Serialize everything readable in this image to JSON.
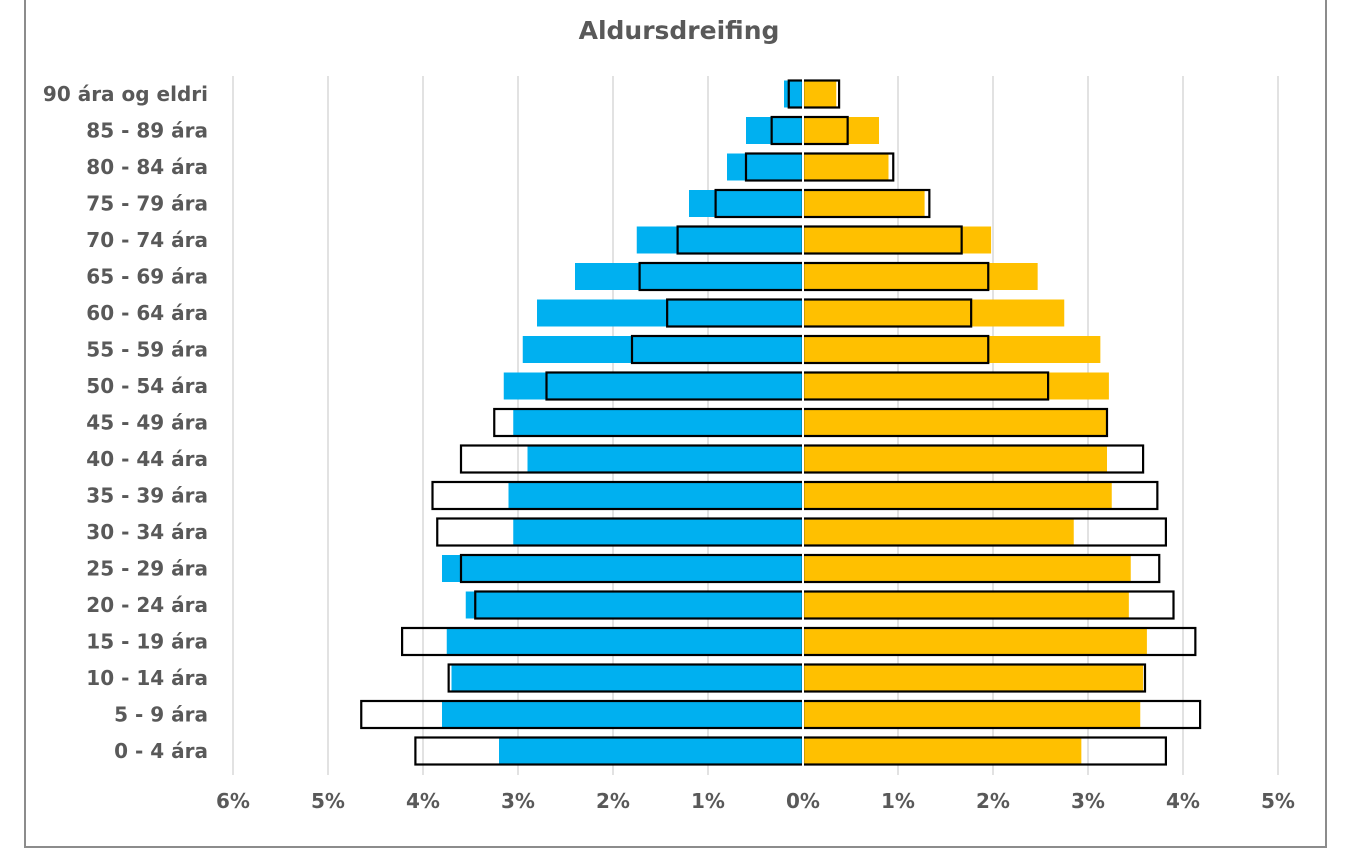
{
  "chart_data": {
    "type": "bar",
    "orientation": "horizontal",
    "layout": "population-pyramid",
    "title": "Aldursdreifing",
    "categories": [
      "90 ára og eldri",
      "85 - 89 ára",
      "80 - 84 ára",
      "75 - 79 ára",
      "70 - 74 ára",
      "65 - 69 ára",
      "60 - 64 ára",
      "55 - 59 ára",
      "50 - 54 ára",
      "45 - 49 ára",
      "40 - 44 ára",
      "35 - 39 ára",
      "30 - 34 ára",
      "25 - 29 ára",
      "20 - 24 ára",
      "15 - 19 ára",
      "10 - 14 ára",
      "5 - 9 ára",
      "0 - 4 ára"
    ],
    "series": [
      {
        "side": "left",
        "style": "filled",
        "color": "#00b0f0",
        "values": [
          0.2,
          0.6,
          0.8,
          1.2,
          1.75,
          2.4,
          2.8,
          2.95,
          3.15,
          3.05,
          2.9,
          3.1,
          3.05,
          3.8,
          3.55,
          3.75,
          3.7,
          3.8,
          3.2
        ]
      },
      {
        "side": "left",
        "style": "outline",
        "color": "#000000",
        "values": [
          0.15,
          0.33,
          0.6,
          0.92,
          1.32,
          1.72,
          1.43,
          1.8,
          2.7,
          3.25,
          3.6,
          3.9,
          3.85,
          3.6,
          3.45,
          4.22,
          3.73,
          4.65,
          4.08
        ]
      },
      {
        "side": "right",
        "style": "filled",
        "color": "#ffc000",
        "values": [
          0.35,
          0.8,
          0.9,
          1.28,
          1.98,
          2.47,
          2.75,
          3.13,
          3.22,
          3.2,
          3.2,
          3.25,
          2.85,
          3.45,
          3.43,
          3.62,
          3.58,
          3.55,
          2.93
        ]
      },
      {
        "side": "right",
        "style": "outline",
        "color": "#000000",
        "values": [
          0.38,
          0.47,
          0.95,
          1.33,
          1.67,
          1.95,
          1.77,
          1.95,
          2.58,
          3.2,
          3.58,
          3.73,
          3.82,
          3.75,
          3.9,
          4.13,
          3.6,
          4.18,
          3.82
        ]
      }
    ],
    "xlim_left": [
      0,
      6
    ],
    "xlim_right": [
      0,
      5
    ],
    "left_ticks": [
      "6%",
      "5%",
      "4%",
      "3%",
      "2%",
      "1%"
    ],
    "center_tick": "0%",
    "right_ticks": [
      "1%",
      "2%",
      "3%",
      "4%",
      "5%"
    ],
    "grid": true
  }
}
